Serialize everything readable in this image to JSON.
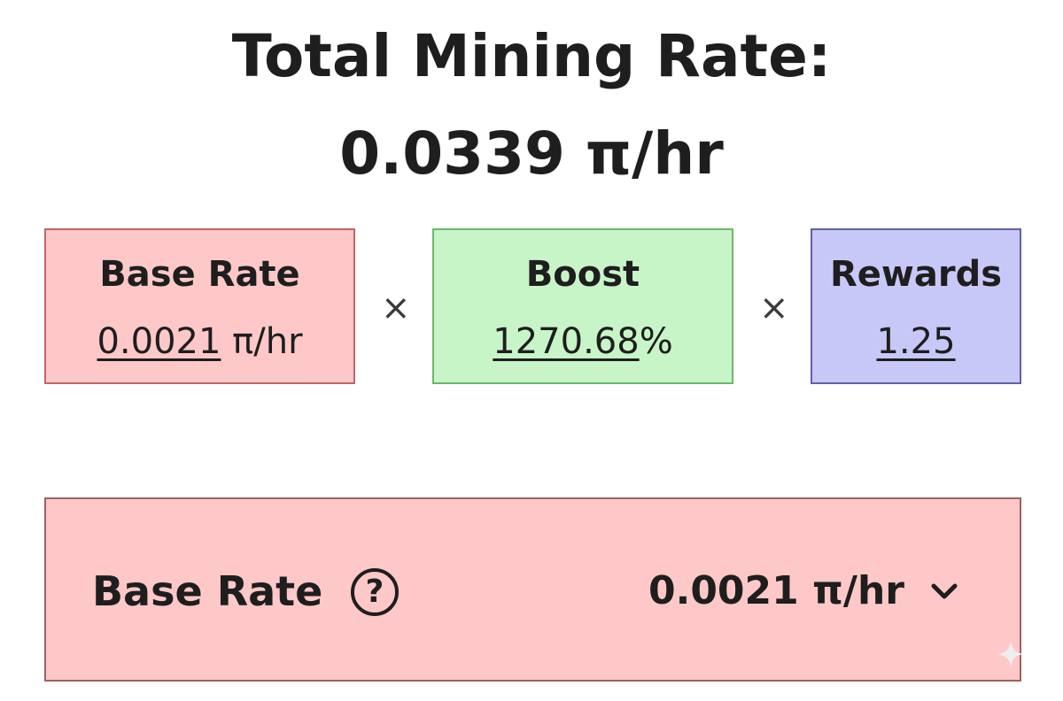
{
  "header": {
    "title_line1": "Total Mining Rate:",
    "title_line2": "0.0339 π/hr"
  },
  "formula": {
    "operator": "×",
    "base": {
      "label": "Base Rate",
      "value": "0.0021",
      "unit": " π/hr",
      "bg_color": "#ffc8c8",
      "border_color": "#c26464"
    },
    "boost": {
      "label": "Boost",
      "value": "1270.68",
      "unit": "%",
      "bg_color": "#c8f5c8",
      "border_color": "#6ab86a"
    },
    "rewards": {
      "label": "Rewards",
      "value": "1.25",
      "unit": "",
      "bg_color": "#c8c8f8",
      "border_color": "#5f5fa8"
    }
  },
  "detail": {
    "label": "Base Rate",
    "help_icon": "question-circle-icon",
    "help_glyph": "?",
    "value": "0.0021 π/hr",
    "chevron_icon": "chevron-down-icon",
    "bg_color": "#ffc8c8",
    "border_color": "#a06060"
  }
}
